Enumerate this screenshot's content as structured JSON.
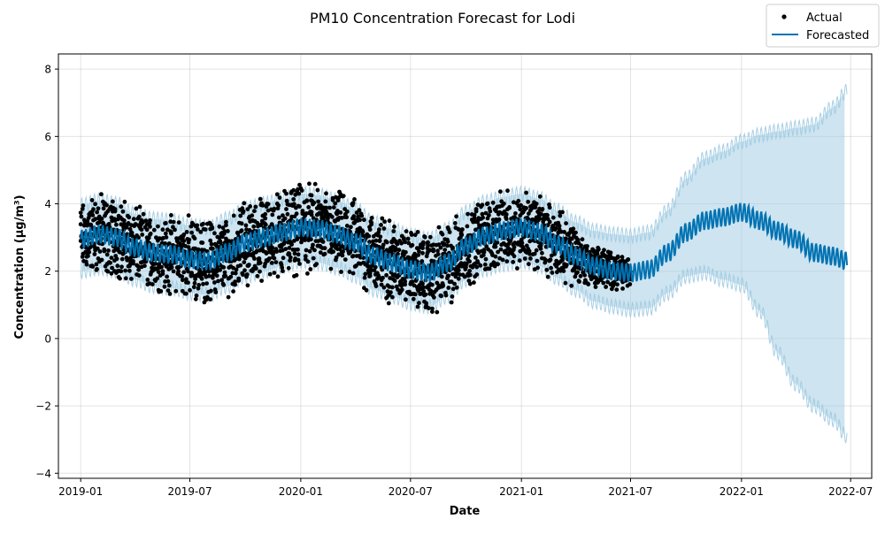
{
  "chart_data": {
    "type": "line",
    "title": "PM10 Concentration Forecast for Lodi",
    "xlabel": "Date",
    "ylabel": "Concentration (µg/m³)",
    "xlim": [
      "2018-11-25",
      "2022-08-05"
    ],
    "ylim": [
      -4.15,
      8.45
    ],
    "grid": true,
    "legend_position": "top-right",
    "x_ticks": [
      "2019-01",
      "2019-07",
      "2020-01",
      "2020-07",
      "2021-01",
      "2021-07",
      "2022-01",
      "2022-07"
    ],
    "y_ticks": [
      -4,
      -2,
      0,
      2,
      4,
      6,
      8
    ],
    "y_tick_labels": [
      "−4",
      "−2",
      "0",
      "2",
      "4",
      "6",
      "8"
    ],
    "colors": {
      "actual": "#000000",
      "forecast": "#0072B2",
      "interval": "#9ecae1"
    },
    "series": [
      {
        "name": "Actual",
        "kind": "points",
        "x": [
          "2019-01-01",
          "2019-02-01",
          "2019-03-01",
          "2019-04-01",
          "2019-05-01",
          "2019-06-01",
          "2019-07-01",
          "2019-08-01",
          "2019-09-01",
          "2019-10-01",
          "2019-11-01",
          "2019-12-01",
          "2020-01-01",
          "2020-02-01",
          "2020-03-01",
          "2020-04-01",
          "2020-05-01",
          "2020-06-01",
          "2020-07-01",
          "2020-08-01",
          "2020-09-01",
          "2020-10-01",
          "2020-11-01",
          "2020-12-01",
          "2021-01-01",
          "2021-02-01",
          "2021-03-01",
          "2021-04-01",
          "2021-05-01",
          "2021-06-01",
          "2021-07-01"
        ],
        "center": [
          2.95,
          3.1,
          3.0,
          2.75,
          2.55,
          2.5,
          2.4,
          2.3,
          2.45,
          2.8,
          2.95,
          3.15,
          3.3,
          3.25,
          3.1,
          2.9,
          2.5,
          2.3,
          2.1,
          1.9,
          2.2,
          2.7,
          3.05,
          3.2,
          3.3,
          3.15,
          2.8,
          2.45,
          2.15,
          2.05,
          1.95
        ],
        "spread": [
          1.0,
          1.1,
          1.1,
          1.0,
          1.0,
          1.0,
          1.1,
          1.1,
          1.0,
          1.1,
          1.1,
          1.2,
          1.2,
          1.1,
          1.1,
          1.1,
          1.1,
          1.1,
          1.0,
          1.1,
          1.1,
          1.0,
          1.0,
          1.0,
          1.0,
          1.0,
          0.9,
          0.8,
          0.6,
          0.5,
          0.4
        ]
      },
      {
        "name": "Forecasted",
        "kind": "line",
        "x": [
          "2019-01-01",
          "2019-02-01",
          "2019-03-01",
          "2019-04-01",
          "2019-05-01",
          "2019-06-01",
          "2019-07-01",
          "2019-08-01",
          "2019-09-01",
          "2019-10-01",
          "2019-11-01",
          "2019-12-01",
          "2020-01-01",
          "2020-02-01",
          "2020-03-01",
          "2020-04-01",
          "2020-05-01",
          "2020-06-01",
          "2020-07-01",
          "2020-08-01",
          "2020-09-01",
          "2020-10-01",
          "2020-11-01",
          "2020-12-01",
          "2021-01-01",
          "2021-02-01",
          "2021-03-01",
          "2021-04-01",
          "2021-05-01",
          "2021-06-01",
          "2021-07-01",
          "2021-08-01",
          "2021-09-01",
          "2021-10-01",
          "2021-11-01",
          "2021-12-01",
          "2022-01-01",
          "2022-02-01",
          "2022-03-01",
          "2022-04-01",
          "2022-05-01",
          "2022-06-01",
          "2022-06-25"
        ],
        "y": [
          2.95,
          3.1,
          3.0,
          2.7,
          2.55,
          2.5,
          2.35,
          2.3,
          2.55,
          2.85,
          3.0,
          3.15,
          3.3,
          3.25,
          3.1,
          2.85,
          2.45,
          2.25,
          2.05,
          1.95,
          2.25,
          2.75,
          3.05,
          3.2,
          3.3,
          3.15,
          2.8,
          2.45,
          2.15,
          2.0,
          1.95,
          2.05,
          2.55,
          3.15,
          3.5,
          3.6,
          3.75,
          3.5,
          3.2,
          2.95,
          2.55,
          2.45,
          2.3
        ],
        "lower": [
          2.0,
          2.1,
          2.0,
          1.75,
          1.55,
          1.5,
          1.35,
          1.3,
          1.55,
          1.85,
          2.0,
          2.15,
          2.3,
          2.25,
          2.1,
          1.85,
          1.45,
          1.25,
          1.05,
          0.95,
          1.25,
          1.75,
          2.05,
          2.2,
          2.3,
          2.15,
          1.8,
          1.45,
          1.1,
          0.95,
          0.85,
          0.9,
          1.35,
          1.85,
          1.95,
          1.75,
          1.6,
          0.8,
          -0.4,
          -1.35,
          -2.0,
          -2.4,
          -2.9
        ],
        "upper": [
          3.95,
          4.1,
          4.0,
          3.7,
          3.55,
          3.5,
          3.35,
          3.3,
          3.55,
          3.85,
          4.0,
          4.15,
          4.3,
          4.25,
          4.1,
          3.85,
          3.45,
          3.25,
          3.05,
          2.95,
          3.25,
          3.75,
          4.05,
          4.2,
          4.3,
          4.15,
          3.8,
          3.45,
          3.2,
          3.1,
          3.05,
          3.15,
          3.8,
          4.75,
          5.35,
          5.55,
          5.85,
          6.05,
          6.15,
          6.25,
          6.35,
          6.85,
          7.35
        ]
      }
    ]
  }
}
